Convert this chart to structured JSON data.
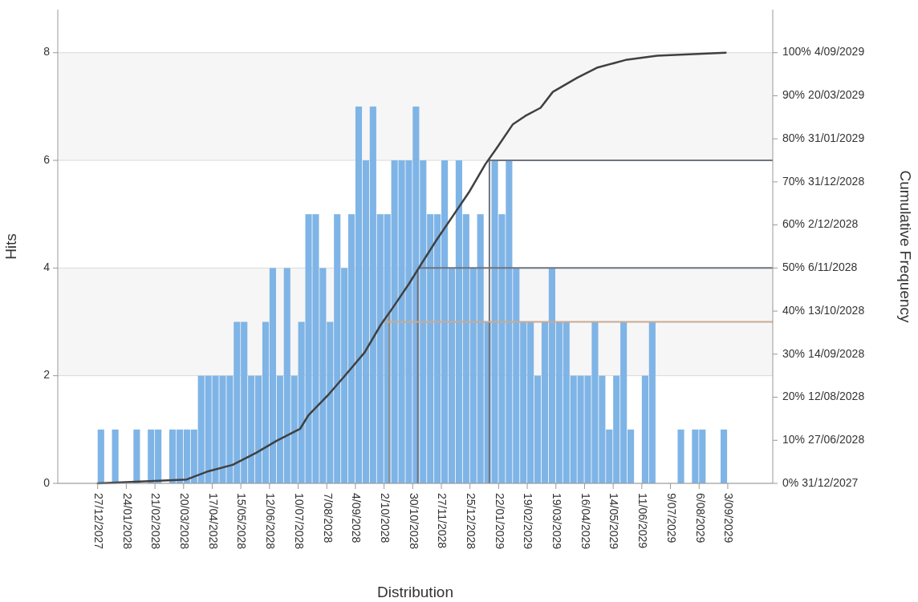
{
  "chart_data": {
    "type": "histogram",
    "xlabel": "Distribution",
    "ylabel": "Hits",
    "color": "#7fb4e6",
    "bins": [
      "2027-12-27",
      "2028-01-03",
      "2028-01-10",
      "2028-01-17",
      "2028-01-24",
      "2028-01-31",
      "2028-02-07",
      "2028-02-14",
      "2028-02-21",
      "2028-02-28",
      "2028-03-06",
      "2028-03-13",
      "2028-03-20",
      "2028-03-27",
      "2028-04-03",
      "2028-04-10",
      "2028-04-17",
      "2028-04-24",
      "2028-05-01",
      "2028-05-08",
      "2028-05-15",
      "2028-05-22",
      "2028-05-29",
      "2028-06-05",
      "2028-06-12",
      "2028-06-19",
      "2028-06-26",
      "2028-07-03",
      "2028-07-10",
      "2028-07-17",
      "2028-07-24",
      "2028-07-31",
      "2028-08-07",
      "2028-08-14",
      "2028-08-21",
      "2028-08-28",
      "2028-09-04",
      "2028-09-11",
      "2028-09-18",
      "2028-09-25",
      "2028-10-02",
      "2028-10-09",
      "2028-10-16",
      "2028-10-23",
      "2028-10-30",
      "2028-11-06",
      "2028-11-13",
      "2028-11-20",
      "2028-11-27",
      "2028-12-04",
      "2028-12-11",
      "2028-12-18",
      "2028-12-25",
      "2029-01-01",
      "2029-01-08",
      "2029-01-15",
      "2029-01-22",
      "2029-01-29",
      "2029-02-05",
      "2029-02-12",
      "2029-02-19",
      "2029-02-26",
      "2029-03-05",
      "2029-03-12",
      "2029-03-19",
      "2029-03-26",
      "2029-04-02",
      "2029-04-09",
      "2029-04-16",
      "2029-04-23",
      "2029-04-30",
      "2029-05-07",
      "2029-05-14",
      "2029-05-21",
      "2029-05-28",
      "2029-06-04",
      "2029-06-11",
      "2029-06-18",
      "2029-06-25",
      "2029-07-02",
      "2029-07-09",
      "2029-07-16",
      "2029-07-23",
      "2029-07-30",
      "2029-08-06",
      "2029-08-13",
      "2029-08-20",
      "2029-08-27",
      "2029-09-03"
    ],
    "values": [
      1,
      0,
      1,
      0,
      0,
      1,
      0,
      1,
      1,
      0,
      1,
      1,
      1,
      1,
      2,
      2,
      2,
      2,
      2,
      3,
      3,
      2,
      2,
      3,
      4,
      2,
      4,
      2,
      3,
      5,
      5,
      4,
      3,
      5,
      4,
      5,
      7,
      6,
      7,
      5,
      5,
      6,
      6,
      6,
      7,
      6,
      5,
      5,
      6,
      4,
      6,
      5,
      4,
      5,
      3,
      6,
      5,
      6,
      4,
      3,
      3,
      2,
      3,
      4,
      3,
      3,
      2,
      2,
      2,
      3,
      2,
      1,
      2,
      3,
      1,
      0,
      2,
      3,
      0,
      0,
      0,
      1,
      0,
      1,
      1,
      0,
      0,
      1
    ],
    "series": [
      {
        "type": "line",
        "axis": "y2",
        "color": "#404040",
        "x": [
          "2027-12-27",
          "2028-03-23",
          "2028-04-13",
          "2028-05-07",
          "2028-05-30",
          "2028-06-19",
          "2028-07-12",
          "2028-07-20",
          "2028-08-09",
          "2028-08-24",
          "2028-09-13",
          "2028-09-29",
          "2028-10-10",
          "2028-10-26",
          "2028-11-07",
          "2028-11-22",
          "2028-12-08",
          "2028-12-24",
          "2029-01-09",
          "2029-01-20",
          "2029-02-05",
          "2029-02-17",
          "2029-03-04",
          "2029-03-16",
          "2029-04-09",
          "2029-04-28",
          "2029-05-26",
          "2029-06-26",
          "2029-09-01"
        ],
        "values": [
          0,
          0.9,
          2.8,
          4.3,
          7.1,
          9.9,
          12.7,
          15.8,
          20.7,
          24.8,
          30.4,
          36.9,
          40.6,
          46.2,
          50.8,
          56.4,
          62,
          67.6,
          74.1,
          77.8,
          83.4,
          85.3,
          87.2,
          90.9,
          94.2,
          96.5,
          98.3,
          99.3,
          100
        ]
      }
    ],
    "xlim": [
      "2027-11-18",
      "2029-10-17"
    ],
    "xticks": [
      {
        "value": "2027-12-27",
        "label": "27/12/2027"
      },
      {
        "value": "2028-01-24",
        "label": "24/01/2028"
      },
      {
        "value": "2028-02-21",
        "label": "21/02/2028"
      },
      {
        "value": "2028-03-20",
        "label": "20/03/2028"
      },
      {
        "value": "2028-04-17",
        "label": "17/04/2028"
      },
      {
        "value": "2028-05-15",
        "label": "15/05/2028"
      },
      {
        "value": "2028-06-12",
        "label": "12/06/2028"
      },
      {
        "value": "2028-07-10",
        "label": "10/07/2028"
      },
      {
        "value": "2028-08-07",
        "label": "7/08/2028"
      },
      {
        "value": "2028-09-04",
        "label": "4/09/2028"
      },
      {
        "value": "2028-10-02",
        "label": "2/10/2028"
      },
      {
        "value": "2028-10-30",
        "label": "30/10/2028"
      },
      {
        "value": "2028-11-27",
        "label": "27/11/2028"
      },
      {
        "value": "2028-12-25",
        "label": "25/12/2028"
      },
      {
        "value": "2029-01-22",
        "label": "22/01/2029"
      },
      {
        "value": "2029-02-19",
        "label": "19/02/2029"
      },
      {
        "value": "2029-03-19",
        "label": "19/03/2029"
      },
      {
        "value": "2029-04-16",
        "label": "16/04/2029"
      },
      {
        "value": "2029-05-14",
        "label": "14/05/2029"
      },
      {
        "value": "2029-06-11",
        "label": "11/06/2029"
      },
      {
        "value": "2029-07-09",
        "label": "9/07/2029"
      },
      {
        "value": "2029-08-06",
        "label": "6/08/2029"
      },
      {
        "value": "2029-09-03",
        "label": "3/09/2029"
      }
    ],
    "ylim": [
      0,
      8.8
    ],
    "yticks": [
      0,
      2,
      4,
      6,
      8
    ],
    "y2lim": [
      0,
      110
    ],
    "y2ticks": [
      {
        "value": 0,
        "label": "0%"
      },
      {
        "value": 10,
        "label": "10%"
      },
      {
        "value": 20,
        "label": "20%"
      },
      {
        "value": 30,
        "label": "30%"
      },
      {
        "value": 40,
        "label": "40%"
      },
      {
        "value": 50,
        "label": "50%"
      },
      {
        "value": 60,
        "label": "60%"
      },
      {
        "value": 70,
        "label": "70%"
      },
      {
        "value": 80,
        "label": "80%"
      },
      {
        "value": 90,
        "label": "90%"
      },
      {
        "value": 100,
        "label": "100%"
      }
    ],
    "annotations": [
      "31/12/2027",
      "27/06/2028",
      "12/08/2028",
      "14/09/2028",
      "13/10/2028",
      "6/11/2028",
      "2/12/2028",
      "31/12/2028",
      "31/01/2029",
      "20/03/2029",
      "4/09/2029",
      "Cumulative Frequency"
    ],
    "grid": "y",
    "bands": [
      {
        "axis": "y",
        "from": 2,
        "to": 4,
        "color": "#f6f6f6"
      },
      {
        "axis": "y",
        "from": 6,
        "to": 8,
        "color": "#f6f6f6"
      }
    ],
    "ref_lines": [
      {
        "axis": "x",
        "value": "2028-10-07",
        "color": "#909090"
      },
      {
        "axis": "x",
        "value": "2028-11-04",
        "color": "#6e7480"
      },
      {
        "axis": "x",
        "value": "2029-01-13",
        "color": "#6e7480"
      },
      {
        "axis": "y2",
        "value": 37.5,
        "color": "#c8aa94"
      },
      {
        "axis": "y2",
        "value": 50,
        "color": "#6e7480"
      },
      {
        "axis": "y2",
        "value": 75,
        "color": "#6e7480"
      }
    ]
  }
}
